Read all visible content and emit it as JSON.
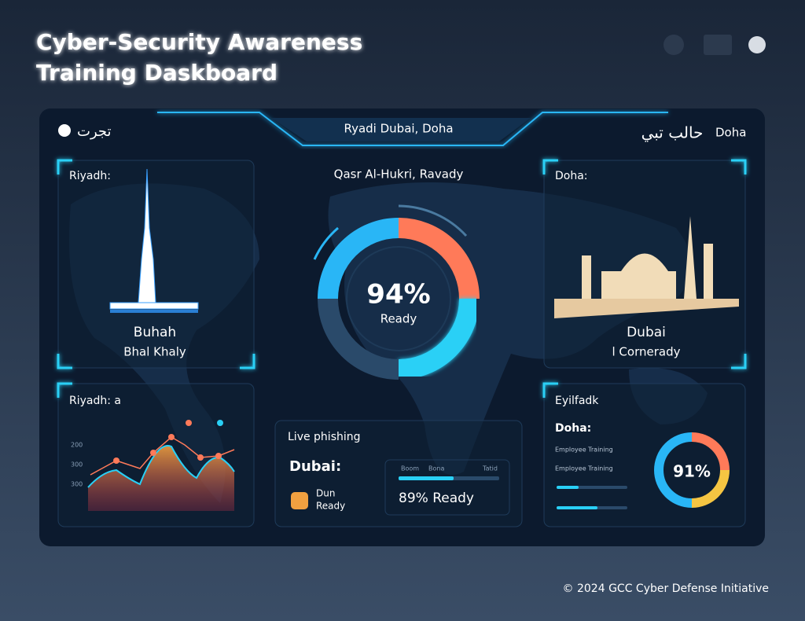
{
  "header": {
    "title_lines": [
      "Cyber-Security Awareness",
      "Training Daskboard"
    ]
  },
  "panel": {
    "tab": "Ryadi Dubai, Doha",
    "top_left": "تجرت",
    "top_right_script": "حالب تبي",
    "top_right": "Doha"
  },
  "center": {
    "location": "Qasr Al-Hukri, Ravady",
    "percent": "94%",
    "status": "Ready"
  },
  "card_left": {
    "label": "Riyadh:",
    "name": "Buhah",
    "sub": "Bhal Khaly"
  },
  "card_right": {
    "label": "Doha:",
    "name": "Dubai",
    "sub": "l Cornerady"
  },
  "chart_card": {
    "label": "Riyadh: a",
    "ytick_labels": [
      "200",
      "300",
      "300"
    ]
  },
  "phishing": {
    "title": "Live phishing",
    "city": "Dubai:",
    "badge_lines": [
      "Dun",
      "Ready"
    ],
    "bar_labels": [
      "Boom",
      "Bona",
      "Tatid"
    ],
    "status": "89% Ready"
  },
  "card_br": {
    "label": "Eyilfadk",
    "city": "Doha:",
    "rows": [
      "Employee Training",
      "Employee Training"
    ],
    "percent": "91%"
  },
  "footer": "© 2024 GCC Cyber Defense Initiative"
}
